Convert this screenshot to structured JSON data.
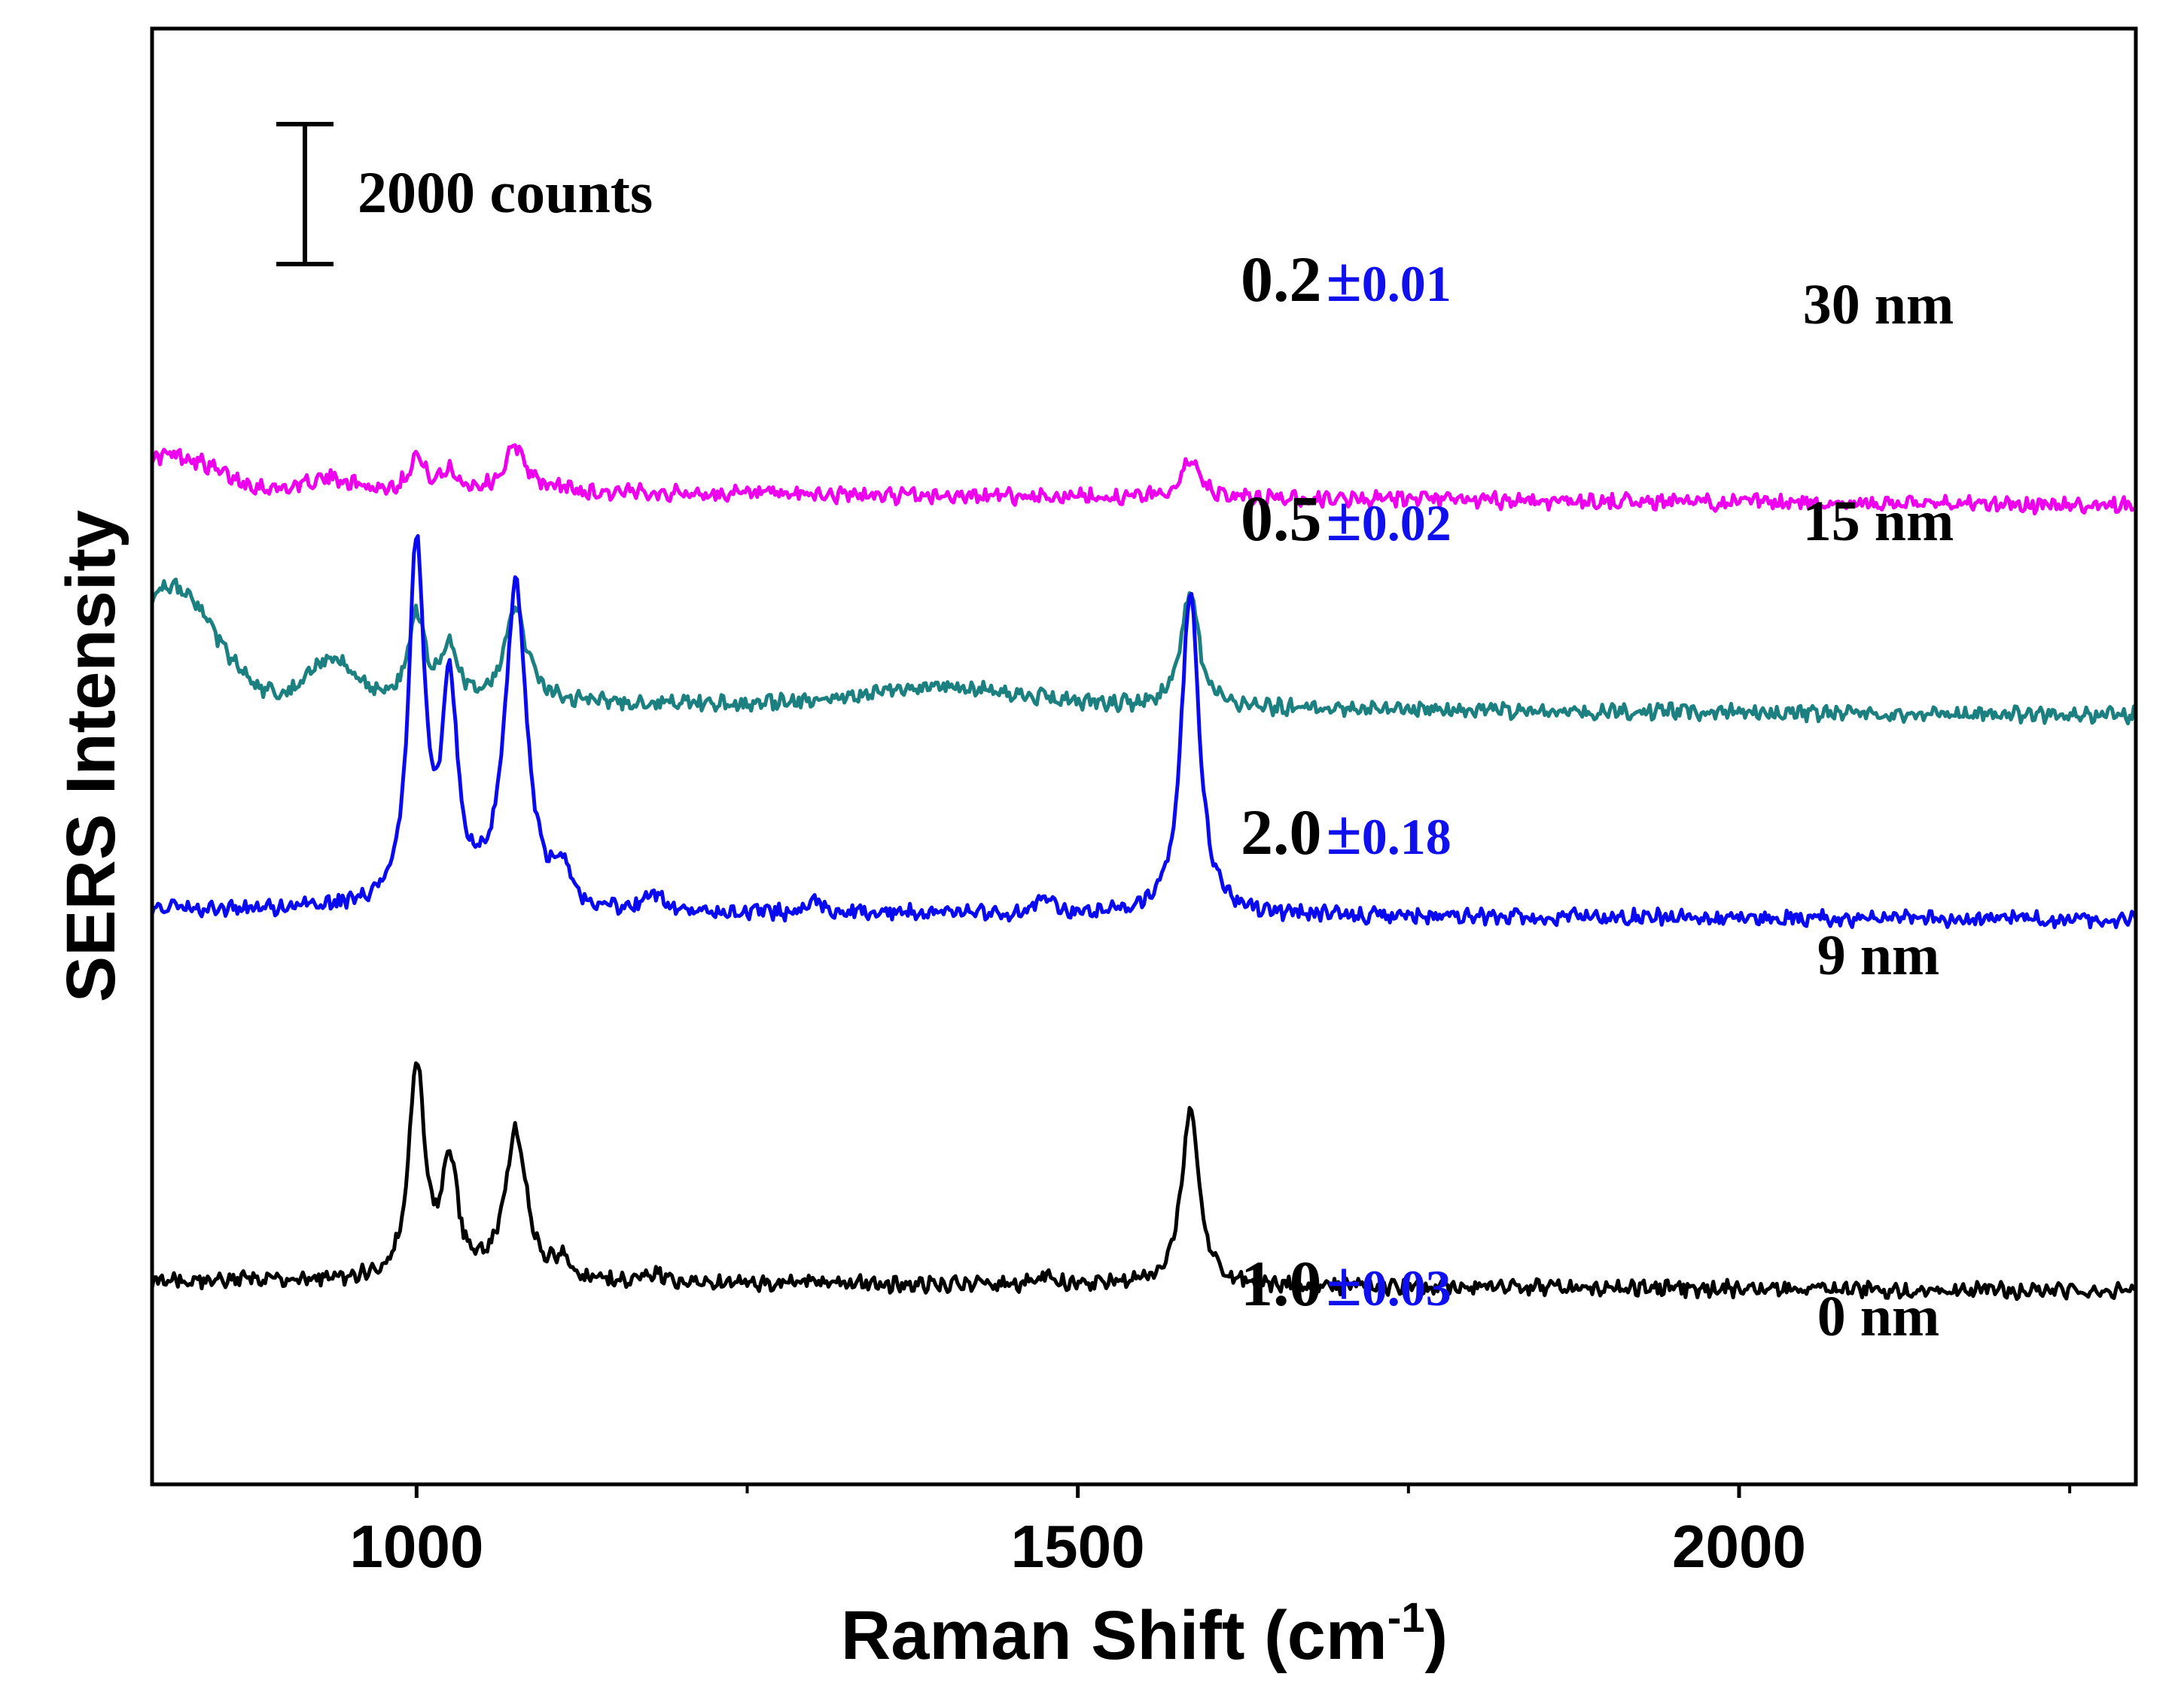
{
  "chart_data": {
    "type": "line",
    "title": "",
    "xlabel": "Raman Shift (cm",
    "xlabel_sup": "-1",
    "xlabel_close": ")",
    "ylabel": "SERS Intensity",
    "xlim": [
      800,
      2300
    ],
    "xticks_major": [
      "1000",
      "1500",
      "2000"
    ],
    "xticks_major_values": [
      1000,
      1500,
      2000
    ],
    "xticks_minor_values": [
      1250,
      1750,
      2250
    ],
    "grid": false,
    "scale_bar": {
      "label": "2000 counts",
      "counts": 2000
    },
    "peak_positions": [
      1000,
      1025,
      1075,
      1585
    ],
    "series": [
      {
        "name": "30 nm",
        "thickness_label": "30 nm",
        "ratio": "0.2",
        "pm": "±",
        "error": "0.01",
        "color": "#ee00ee",
        "baseline_counts": 7300,
        "slope_counts_per_cm": -0.15,
        "edge_bump_counts": 500,
        "peak_heights_counts": [
          500,
          280,
          650,
          550
        ]
      },
      {
        "name": "15 nm",
        "thickness_label": "15 nm",
        "ratio": "0.5",
        "pm": "±",
        "error": "0.02",
        "color": "#1c8080",
        "baseline_counts": 4300,
        "slope_counts_per_cm": -0.15,
        "edge_bump_counts": 1600,
        "peak_heights_counts": [
          1250,
          750,
          1300,
          1650
        ]
      },
      {
        "name": "9 nm",
        "thickness_label": "9 nm",
        "ratio": "2.0",
        "pm": "±",
        "error": "0.18",
        "color": "#0a0af0",
        "baseline_counts": 1300,
        "slope_counts_per_cm": -0.1,
        "edge_bump_counts": 0,
        "peak_heights_counts": [
          5150,
          3050,
          4600,
          4650
        ]
      },
      {
        "name": "0 nm",
        "thickness_label": "0 nm",
        "ratio": "1.0",
        "pm": "±",
        "error": "0.03",
        "color": "#000000",
        "baseline_counts": -4000,
        "slope_counts_per_cm": -0.1,
        "edge_bump_counts": 0,
        "peak_heights_counts": [
          3050,
          1650,
          2100,
          2500
        ]
      }
    ]
  }
}
